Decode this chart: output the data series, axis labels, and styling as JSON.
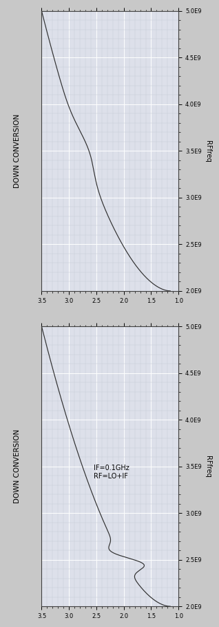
{
  "title": "DOWN CONVERSION",
  "ylabel_right": "RFfreq",
  "xmin": 1.0,
  "xmax": 3.5,
  "ymin": 2000000000.0,
  "ymax": 5000000000.0,
  "xticks": [
    1.0,
    1.5,
    2.0,
    2.5,
    3.0,
    3.5
  ],
  "xtick_labels": [
    "1.0",
    "1.5",
    "2.0",
    "2.5",
    "3.0",
    "3.5"
  ],
  "yticks": [
    2000000000.0,
    2500000000.0,
    3000000000.0,
    3500000000.0,
    4000000000.0,
    4500000000.0,
    5000000000.0
  ],
  "ytick_labels": [
    "2.0E9",
    "2.5E9",
    "3.0E9",
    "3.5E9",
    "4.0E9",
    "4.5E9",
    "5.0E9"
  ],
  "line_color": "#303030",
  "bg_color": "#dde0ea",
  "annotation1": "IF=0.1GHz",
  "annotation2": "RF=LO+IF",
  "grid_major_color": "#ffffff",
  "grid_minor_color": "#c8ccd8",
  "fig_bg_color": "#c8c8c8",
  "title_fontsize": 7.5,
  "tick_fontsize": 6.0,
  "label_fontsize": 7.0
}
